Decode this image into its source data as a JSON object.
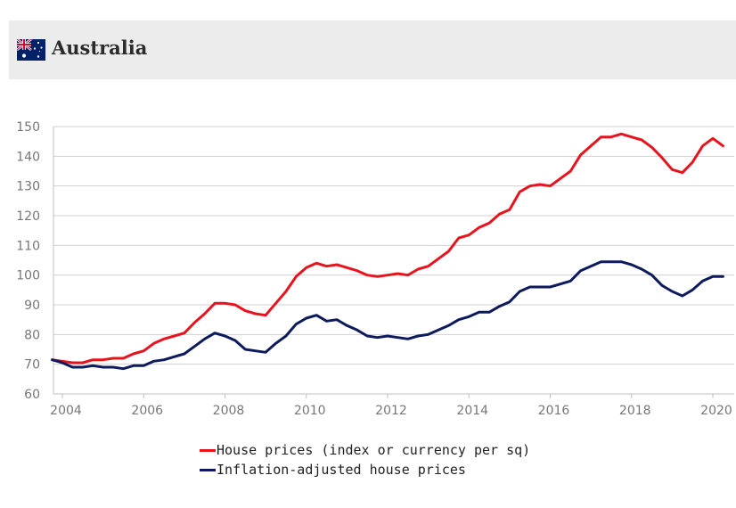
{
  "header": {
    "title": "Australia",
    "flag_icon": "australia-flag-icon"
  },
  "chart_data": {
    "type": "line",
    "title": "Australia",
    "xlabel": "",
    "ylabel": "",
    "xlim": [
      2003.75,
      2020.6
    ],
    "ylim": [
      60,
      150
    ],
    "xticks": [
      2004,
      2006,
      2008,
      2010,
      2012,
      2014,
      2016,
      2018,
      2020
    ],
    "yticks": [
      60,
      70,
      80,
      90,
      100,
      110,
      120,
      130,
      140,
      150
    ],
    "grid": "horizontal",
    "legend_position": "bottom",
    "series": [
      {
        "name": "House prices (index or currency per sq)",
        "color": "#e8141d",
        "x": [
          2003.75,
          2004.0,
          2004.25,
          2004.5,
          2004.75,
          2005.0,
          2005.25,
          2005.5,
          2005.75,
          2006.0,
          2006.25,
          2006.5,
          2006.75,
          2007.0,
          2007.25,
          2007.5,
          2007.75,
          2008.0,
          2008.25,
          2008.5,
          2008.75,
          2009.0,
          2009.25,
          2009.5,
          2009.75,
          2010.0,
          2010.25,
          2010.5,
          2010.75,
          2011.0,
          2011.25,
          2011.5,
          2011.75,
          2012.0,
          2012.25,
          2012.5,
          2012.75,
          2013.0,
          2013.25,
          2013.5,
          2013.75,
          2014.0,
          2014.25,
          2014.5,
          2014.75,
          2015.0,
          2015.25,
          2015.5,
          2015.75,
          2016.0,
          2016.25,
          2016.5,
          2016.75,
          2017.0,
          2017.25,
          2017.5,
          2017.75,
          2018.0,
          2018.25,
          2018.5,
          2018.75,
          2019.0,
          2019.25,
          2019.5,
          2019.75,
          2020.0,
          2020.25
        ],
        "values": [
          71.5,
          71.0,
          70.5,
          70.5,
          71.5,
          71.5,
          72.0,
          72.0,
          73.5,
          74.5,
          77.0,
          78.5,
          79.5,
          80.5,
          84.0,
          87.0,
          90.5,
          90.5,
          90.0,
          88.0,
          87.0,
          86.5,
          90.5,
          94.5,
          99.5,
          102.5,
          104.0,
          103.0,
          103.5,
          102.5,
          101.5,
          100.0,
          99.5,
          100.0,
          100.5,
          100.0,
          102.0,
          103.0,
          105.5,
          108.0,
          112.5,
          113.5,
          116.0,
          117.5,
          120.5,
          122.0,
          128.0,
          130.0,
          130.5,
          130.0,
          132.5,
          135.0,
          140.5,
          143.5,
          146.5,
          146.5,
          147.5,
          146.5,
          145.5,
          143.0,
          139.5,
          135.5,
          134.5,
          138.0,
          143.5,
          146.0,
          143.5
        ]
      },
      {
        "name": "Inflation-adjusted house prices",
        "color": "#0d1a5c",
        "x": [
          2003.75,
          2004.0,
          2004.25,
          2004.5,
          2004.75,
          2005.0,
          2005.25,
          2005.5,
          2005.75,
          2006.0,
          2006.25,
          2006.5,
          2006.75,
          2007.0,
          2007.25,
          2007.5,
          2007.75,
          2008.0,
          2008.25,
          2008.5,
          2008.75,
          2009.0,
          2009.25,
          2009.5,
          2009.75,
          2010.0,
          2010.25,
          2010.5,
          2010.75,
          2011.0,
          2011.25,
          2011.5,
          2011.75,
          2012.0,
          2012.25,
          2012.5,
          2012.75,
          2013.0,
          2013.25,
          2013.5,
          2013.75,
          2014.0,
          2014.25,
          2014.5,
          2014.75,
          2015.0,
          2015.25,
          2015.5,
          2015.75,
          2016.0,
          2016.25,
          2016.5,
          2016.75,
          2017.0,
          2017.25,
          2017.5,
          2017.75,
          2018.0,
          2018.25,
          2018.5,
          2018.75,
          2019.0,
          2019.25,
          2019.5,
          2019.75,
          2020.0,
          2020.25
        ],
        "values": [
          71.5,
          70.5,
          69.0,
          69.0,
          69.5,
          69.0,
          69.0,
          68.5,
          69.5,
          69.5,
          71.0,
          71.5,
          72.5,
          73.5,
          76.0,
          78.5,
          80.5,
          79.5,
          78.0,
          75.0,
          74.5,
          74.0,
          77.0,
          79.5,
          83.5,
          85.5,
          86.5,
          84.5,
          85.0,
          83.0,
          81.5,
          79.5,
          79.0,
          79.5,
          79.0,
          78.5,
          79.5,
          80.0,
          81.5,
          83.0,
          85.0,
          86.0,
          87.5,
          87.5,
          89.5,
          91.0,
          94.5,
          96.0,
          96.0,
          96.0,
          97.0,
          98.0,
          101.5,
          103.0,
          104.5,
          104.5,
          104.5,
          103.5,
          102.0,
          100.0,
          96.5,
          94.5,
          93.0,
          95.0,
          98.0,
          99.5,
          99.5
        ]
      }
    ]
  }
}
